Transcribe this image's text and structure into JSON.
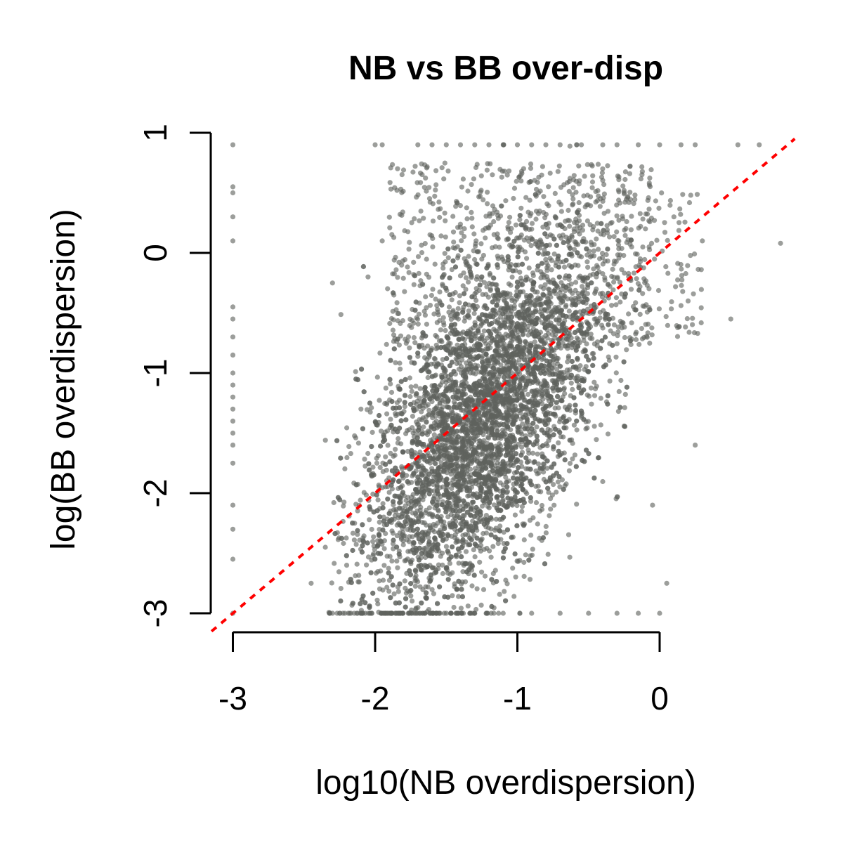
{
  "chart_data": {
    "type": "scatter",
    "title": "NB vs BB over-disp",
    "xlabel": "log10(NB overdispersion)",
    "ylabel": "log(BB overdispersion)",
    "xlim": [
      -3.15,
      0.95
    ],
    "ylim": [
      -3.0,
      0.9
    ],
    "x_ticks": [
      -3,
      -2,
      -1,
      0
    ],
    "y_ticks": [
      -3,
      -2,
      -1,
      0,
      1
    ],
    "x_tick_labels": [
      "-3",
      "-2",
      "-1",
      "0"
    ],
    "y_tick_labels": [
      "-3",
      "-2",
      "-1",
      "0",
      "1"
    ],
    "grid": false,
    "point_color": "#5f625e",
    "reference_line": {
      "type": "identity",
      "slope": 1,
      "intercept": 0,
      "color": "#ff0000",
      "style": "dashed"
    },
    "series": [
      {
        "points": [
          [
            -3.0,
            0.9
          ],
          [
            -3.0,
            0.55
          ],
          [
            -3.0,
            0.5
          ],
          [
            -3.0,
            0.3
          ],
          [
            -3.0,
            0.1
          ],
          [
            -3.0,
            -0.45
          ],
          [
            -3.0,
            -0.55
          ],
          [
            -3.0,
            -0.7
          ],
          [
            -3.0,
            -0.85
          ],
          [
            -3.0,
            -1.0
          ],
          [
            -3.0,
            -1.1
          ],
          [
            -3.0,
            -1.2
          ],
          [
            -3.0,
            -1.3
          ],
          [
            -3.0,
            -1.4
          ],
          [
            -3.0,
            -1.5
          ],
          [
            -3.0,
            -1.6
          ],
          [
            -3.0,
            -1.75
          ],
          [
            -3.0,
            -2.1
          ],
          [
            -3.0,
            -2.3
          ],
          [
            -3.0,
            -2.55
          ],
          [
            -3.0,
            -3.0
          ],
          [
            -2.0,
            0.9
          ],
          [
            -1.95,
            0.9
          ],
          [
            -1.7,
            0.9
          ],
          [
            -1.6,
            0.9
          ],
          [
            -1.5,
            0.9
          ],
          [
            -1.4,
            0.9
          ],
          [
            -1.3,
            0.9
          ],
          [
            -1.2,
            0.9
          ],
          [
            -1.1,
            0.9
          ],
          [
            -1.0,
            0.9
          ],
          [
            -0.9,
            0.9
          ],
          [
            -0.8,
            0.9
          ],
          [
            -0.7,
            0.9
          ],
          [
            -0.55,
            0.9
          ],
          [
            -0.4,
            0.9
          ],
          [
            -0.3,
            0.9
          ],
          [
            -0.15,
            0.9
          ],
          [
            0.0,
            0.9
          ],
          [
            0.15,
            0.9
          ],
          [
            0.25,
            0.9
          ],
          [
            0.55,
            0.9
          ],
          [
            0.7,
            0.9
          ],
          [
            0.85,
            0.08
          ],
          [
            0.5,
            -0.55
          ],
          [
            0.25,
            -1.6
          ],
          [
            0.05,
            -2.75
          ],
          [
            -0.05,
            -2.1
          ],
          [
            -2.45,
            -2.75
          ],
          [
            -2.35,
            -2.45
          ],
          [
            -2.2,
            -2.6
          ],
          [
            -2.3,
            -3.0
          ],
          [
            -2.1,
            -3.0
          ],
          [
            -1.9,
            -3.0
          ],
          [
            -1.7,
            -3.0
          ],
          [
            -1.5,
            -3.0
          ],
          [
            -1.3,
            -3.0
          ],
          [
            -1.1,
            -3.0
          ],
          [
            -0.9,
            -3.0
          ],
          [
            -0.7,
            -3.0
          ],
          [
            -0.5,
            -3.0
          ],
          [
            -0.3,
            -3.0
          ],
          [
            -0.15,
            -3.0
          ],
          [
            0.0,
            -3.0
          ],
          [
            -2.3,
            -0.25
          ],
          [
            -2.1,
            -1.3
          ],
          [
            -2.05,
            -0.2
          ],
          [
            -1.95,
            0.1
          ],
          [
            -0.1,
            0.2
          ],
          [
            0.1,
            0.3
          ],
          [
            0.3,
            0.1
          ],
          [
            0.2,
            -0.4
          ]
        ]
      }
    ]
  }
}
